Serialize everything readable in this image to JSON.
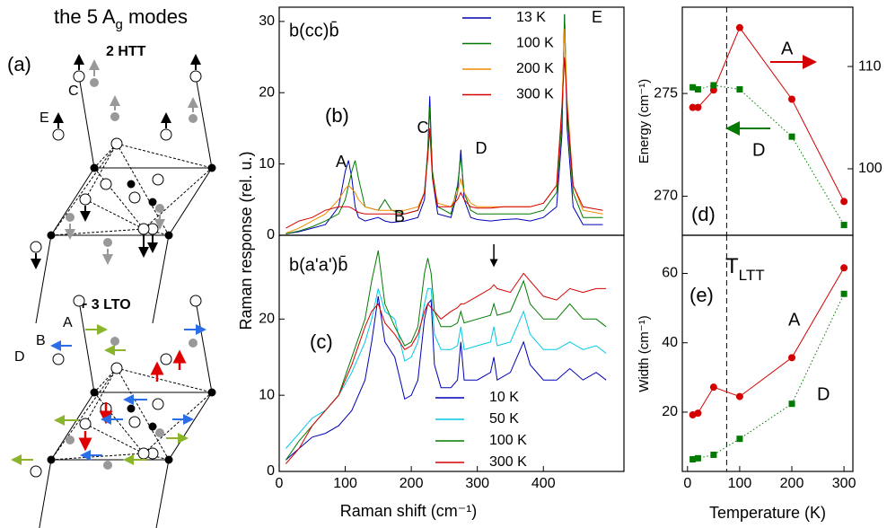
{
  "diagram": {
    "title_parts": [
      "the 5 A",
      "g",
      " modes"
    ],
    "panel": "(a)",
    "top_label": "2  HTT",
    "top_modes": [
      "C",
      "E"
    ],
    "bottom_label": "+ 3  LTO",
    "bottom_modes": [
      "A",
      "B",
      "D"
    ]
  },
  "chart_data": [
    {
      "type": "line",
      "title": "b(cc)b̄",
      "panel": "(b)",
      "ylabel": "Raman response (rel. u.)",
      "xlim": [
        0,
        522
      ],
      "ylim": [
        0,
        32
      ],
      "yticks": [
        0,
        10,
        20,
        30
      ],
      "x": [
        10,
        30,
        50,
        70,
        90,
        100,
        105,
        110,
        115,
        120,
        130,
        150,
        160,
        170,
        190,
        210,
        220,
        225,
        228,
        232,
        240,
        260,
        270,
        275,
        280,
        290,
        300,
        320,
        340,
        360,
        380,
        400,
        420,
        428,
        432,
        436,
        445,
        460,
        490
      ],
      "series": [
        {
          "name": "13 K",
          "color": "#0000b4",
          "values": [
            0.2,
            0.5,
            1,
            1.5,
            4,
            9,
            10.5,
            8,
            4,
            2.5,
            2,
            2.5,
            2,
            1.8,
            2,
            2.5,
            5,
            12,
            19.5,
            8,
            3,
            2.5,
            6,
            12,
            5,
            2.5,
            2.2,
            2,
            2.2,
            2.3,
            2,
            2.5,
            4,
            14,
            31,
            15,
            4,
            1.5,
            1.5
          ]
        },
        {
          "name": "100 K",
          "color": "#007a00",
          "values": [
            0.2,
            0.6,
            1.2,
            2,
            3,
            5,
            7,
            9,
            10.5,
            8,
            4,
            3.5,
            5,
            3.5,
            3,
            3.5,
            6,
            12,
            18,
            9,
            4,
            3,
            7,
            11,
            6,
            3.5,
            3,
            3,
            3,
            3,
            3,
            3.5,
            6,
            16,
            31,
            17,
            6,
            2.5,
            2.5
          ]
        },
        {
          "name": "200 K",
          "color": "#f08c00",
          "values": [
            0.3,
            1,
            2,
            3,
            5,
            6.5,
            7,
            6.5,
            6,
            5,
            4,
            3.5,
            3.5,
            3.5,
            3.5,
            4,
            6,
            11,
            15,
            8,
            4.5,
            4,
            6,
            8,
            6,
            4.5,
            4,
            4,
            4,
            4,
            4,
            4.5,
            7,
            18,
            29,
            19,
            7,
            3.5,
            3
          ]
        },
        {
          "name": "300 K",
          "color": "#d40000",
          "values": [
            1,
            2,
            2.5,
            3.5,
            4,
            4,
            4,
            3.8,
            3.5,
            3.2,
            3,
            3,
            3,
            3,
            3,
            3.5,
            6,
            11,
            15,
            8,
            4,
            4,
            5,
            6,
            5,
            4,
            3.8,
            3.8,
            4,
            4,
            4,
            4.5,
            7,
            18,
            25,
            18,
            7,
            4,
            3.5
          ]
        }
      ],
      "annotations": [
        {
          "text": "A"
        },
        {
          "text": "B"
        },
        {
          "text": "C"
        },
        {
          "text": "D"
        },
        {
          "text": "E"
        }
      ]
    },
    {
      "type": "line",
      "title": "b(a'a')b̄",
      "panel": "(c)",
      "xlabel": "Raman shift (cm⁻¹)",
      "xlim": [
        0,
        522
      ],
      "ylim": [
        0,
        31
      ],
      "xticks": [
        0,
        100,
        200,
        300,
        400
      ],
      "yticks": [
        0,
        10,
        20
      ],
      "arrow_x": 325,
      "x": [
        10,
        30,
        50,
        70,
        90,
        110,
        130,
        140,
        150,
        160,
        175,
        190,
        200,
        210,
        220,
        225,
        230,
        235,
        245,
        260,
        270,
        275,
        280,
        300,
        320,
        325,
        330,
        350,
        370,
        380,
        400,
        420,
        440,
        460,
        480,
        495
      ],
      "series": [
        {
          "name": "10 K",
          "color": "#0000b4",
          "values": [
            1.5,
            3,
            4.5,
            5,
            6,
            8,
            12,
            17,
            23,
            17,
            15,
            9.5,
            10,
            12,
            20,
            22,
            22.5,
            14,
            11,
            11,
            12,
            17,
            12,
            12,
            13,
            15,
            12,
            13,
            17,
            14,
            12,
            12,
            13.5,
            12,
            13,
            12
          ]
        },
        {
          "name": "50 K",
          "color": "#00c8e6",
          "values": [
            3,
            5,
            7,
            8,
            10,
            13,
            17,
            20,
            24,
            21,
            20,
            14.5,
            15,
            17,
            22,
            24,
            24,
            18,
            16,
            16,
            16.5,
            19,
            16,
            16.5,
            17,
            19,
            16.5,
            17,
            21,
            18,
            16,
            16,
            17,
            16,
            16.5,
            15.5
          ]
        },
        {
          "name": "100 K",
          "color": "#007a00",
          "values": [
            1.5,
            4,
            6,
            8,
            10,
            15,
            20,
            25,
            29,
            22,
            19,
            16.5,
            17,
            19,
            26,
            28,
            26,
            21,
            19,
            19,
            19.5,
            21,
            19.5,
            20,
            20.5,
            22,
            20.5,
            21,
            25,
            22,
            20,
            20,
            22,
            20,
            20,
            19
          ]
        },
        {
          "name": "300 K",
          "color": "#d40000",
          "values": [
            1,
            3,
            6,
            8,
            10,
            14,
            19,
            21,
            22,
            19.5,
            18,
            16,
            16.5,
            18,
            21,
            22,
            21.5,
            21,
            20,
            21,
            21.5,
            22,
            22,
            23,
            24,
            24.5,
            24,
            23.5,
            26,
            25,
            23,
            22.5,
            24,
            23.5,
            24,
            24
          ]
        }
      ]
    },
    {
      "type": "line",
      "panel": "(d)",
      "ylabel": "Energy (cm⁻¹)",
      "xlim": [
        -10,
        317
      ],
      "ylim": [
        268.1,
        279.2
      ],
      "yticks": [
        270,
        275
      ],
      "y2lim": [
        93.5,
        115.8
      ],
      "y2ticks": [
        100,
        110
      ],
      "vline_x": 75,
      "x": [
        10,
        20,
        50,
        100,
        200,
        300
      ],
      "series": [
        {
          "name": "A",
          "color": "#d40000",
          "axis": "y2",
          "style": "solid",
          "marker": "circle",
          "values": [
            106.0,
            106.0,
            107.7,
            113.8,
            106.8,
            96.8
          ]
        },
        {
          "name": "D",
          "color": "#007a00",
          "style": "dotted",
          "marker": "square",
          "values": [
            275.3,
            275.2,
            275.4,
            275.2,
            272.9,
            268.6
          ]
        }
      ]
    },
    {
      "type": "line",
      "panel": "(e)",
      "ylabel": "Width (cm⁻¹)",
      "xlabel": "Temperature (K)",
      "xlim": [
        -10,
        317
      ],
      "ylim": [
        2.9,
        71
      ],
      "xticks": [
        0,
        100,
        200,
        300
      ],
      "yticks": [
        20,
        40,
        60
      ],
      "vline_x": 75,
      "vline_label": [
        "T",
        "LTT"
      ],
      "x": [
        10,
        20,
        50,
        100,
        200,
        300
      ],
      "series": [
        {
          "name": "A",
          "color": "#d40000",
          "style": "solid",
          "marker": "circle",
          "values": [
            19.2,
            19.7,
            27.2,
            24.5,
            35.7,
            61.6
          ]
        },
        {
          "name": "D",
          "color": "#007a00",
          "style": "dotted",
          "marker": "square",
          "values": [
            6.4,
            6.7,
            7.7,
            12.3,
            22.4,
            54.1
          ]
        }
      ]
    }
  ]
}
